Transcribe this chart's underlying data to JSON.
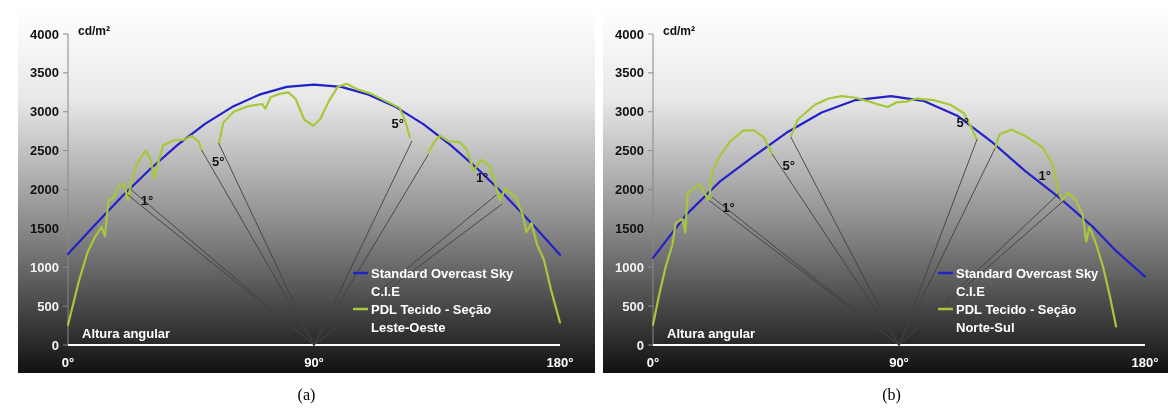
{
  "chart_data": [
    {
      "type": "line",
      "xlabel": "Altura angular",
      "ylabel": "cd/m²",
      "xlim": [
        0,
        180
      ],
      "xticks": [
        {
          "value": 0,
          "label": "0°"
        },
        {
          "value": 90,
          "label": "90°"
        },
        {
          "value": 180,
          "label": "180°"
        }
      ],
      "ylim": [
        0,
        4000
      ],
      "yticks": [
        0,
        500,
        1000,
        1500,
        2000,
        2500,
        3000,
        3500,
        4000
      ],
      "legend": "bottom right",
      "annotations": [
        {
          "text": "1°",
          "x": 23,
          "y": 2000
        },
        {
          "text": "5°",
          "x": 49,
          "y": 2500
        },
        {
          "text": "5°",
          "x": 125.8,
          "y": 2620
        },
        {
          "text": "1°",
          "x": 156.7,
          "y": 1930
        },
        "(a)"
      ],
      "series": [
        {
          "name": "Standard Overcast Sky C.I.E",
          "color": "#2222c8",
          "x": [
            0,
            10,
            20,
            30,
            40,
            50,
            60,
            70,
            80,
            90,
            100,
            110,
            120,
            130,
            140,
            150,
            160,
            170,
            180
          ],
          "values": [
            1170,
            1550,
            1920,
            2260,
            2570,
            2840,
            3060,
            3220,
            3320,
            3350,
            3320,
            3220,
            3060,
            2840,
            2570,
            2260,
            1920,
            1550,
            1160
          ]
        },
        {
          "name": "PDL Tecido - Seção Leste-Oeste",
          "color": "#a6c83a",
          "x": [
            0,
            3.9,
            7.1,
            9.7,
            12.3,
            13.5,
            14.8,
            16.8,
            18.7,
            20.6,
            21.9,
            23.2,
            25.2,
            28.4,
            30.3,
            31.6,
            32.9,
            34.8,
            38.7,
            42.6,
            45.2,
            47.7,
            49,
            52,
            55.2,
            56.8,
            60.6,
            65.8,
            71,
            72.2,
            74.2,
            77.4,
            80.6,
            83.2,
            86.4,
            89.7,
            92.2,
            95.5,
            98.7,
            101.9,
            105.8,
            111,
            116.1,
            121.3,
            123.2,
            125.1,
            128.5,
            131.8,
            134.2,
            136.1,
            139.3,
            143.2,
            145.8,
            148.4,
            151,
            154.2,
            156.1,
            158,
            160,
            163.8,
            166.4,
            167.7,
            169.6,
            171.6,
            174.1,
            176.7,
            180
          ],
          "values": [
            260,
            810,
            1190,
            1380,
            1520,
            1400,
            1860,
            1900,
            2050,
            2070,
            1860,
            2100,
            2330,
            2500,
            2380,
            2140,
            2330,
            2570,
            2630,
            2640,
            2690,
            2620,
            2500,
            null,
            2590,
            2860,
            3000,
            3070,
            3100,
            3040,
            3190,
            3230,
            3250,
            3170,
            2900,
            2820,
            2900,
            3140,
            3320,
            3360,
            3290,
            3230,
            3140,
            3050,
            2900,
            2670,
            null,
            2480,
            2620,
            2690,
            2620,
            2610,
            2520,
            2240,
            2380,
            2310,
            2100,
            1860,
            2010,
            1900,
            1670,
            1450,
            1570,
            1290,
            1100,
            710,
            290
          ]
        },
        {
          "color": "#404040",
          "x": [
            90,
            21.9
          ],
          "values": [
            0,
            1930
          ]
        },
        {
          "color": "#404040",
          "x": [
            90,
            23
          ],
          "values": [
            0,
            2000
          ]
        },
        {
          "color": "#404040",
          "x": [
            90,
            49
          ],
          "values": [
            0,
            2500
          ]
        },
        {
          "color": "#404040",
          "x": [
            90,
            55.2
          ],
          "values": [
            0,
            2590
          ]
        },
        {
          "color": "#404040",
          "x": [
            90,
            125.8
          ],
          "values": [
            0,
            2620
          ]
        },
        {
          "color": "#404040",
          "x": [
            90,
            131.8
          ],
          "values": [
            0,
            2450
          ]
        },
        {
          "color": "#404040",
          "x": [
            90,
            156.7
          ],
          "values": [
            0,
            1930
          ]
        },
        {
          "color": "#404040",
          "x": [
            90,
            158.7
          ],
          "values": [
            0,
            1810
          ]
        }
      ]
    },
    {
      "type": "line",
      "xlabel": "Altura angular",
      "ylabel": "cd/m²",
      "xlim": [
        0,
        180
      ],
      "xticks": [
        {
          "value": 0,
          "label": "0°"
        },
        {
          "value": 90,
          "label": "90°"
        },
        {
          "value": 180,
          "label": "180°"
        }
      ],
      "ylim": [
        0,
        4000
      ],
      "yticks": [
        0,
        500,
        1000,
        1500,
        2000,
        2500,
        3000,
        3500,
        4000
      ],
      "legend": "bottom right",
      "annotations": [
        {
          "text": "1°",
          "x": 21.7,
          "y": 1900
        },
        {
          "text": "5°",
          "x": 43.7,
          "y": 2450
        },
        {
          "text": "5°",
          "x": 118.5,
          "y": 2640
        },
        {
          "text": "1°",
          "x": 148.5,
          "y": 1950
        },
        "(b)"
      ],
      "series": [
        {
          "name": "Standard Overcast Sky C.I.E",
          "color": "#2222c8",
          "x": [
            0,
            12,
            24.4,
            36.9,
            49.3,
            61.7,
            74.1,
            87.1,
            98.9,
            111.3,
            123.7,
            136.1,
            148.5,
            160.9,
            169.4,
            180
          ],
          "values": [
            1120,
            1670,
            2100,
            2430,
            2740,
            2990,
            3150,
            3200,
            3140,
            2950,
            2620,
            2240,
            1900,
            1520,
            1210,
            880
          ]
        },
        {
          "name": "PDL Tecido - Seção Norte-Sul",
          "color": "#a6c83a",
          "x": [
            0,
            2.1,
            4.6,
            7.1,
            8.3,
            10.8,
            11.8,
            12.7,
            14.5,
            17,
            18.9,
            20.5,
            21.7,
            24.4,
            28.2,
            33.1,
            36.9,
            40.6,
            43.7,
            47,
            50.5,
            53,
            59.2,
            64.2,
            69.1,
            74.1,
            79.1,
            82.8,
            85.9,
            89,
            92.7,
            96.4,
            102.6,
            108.8,
            113.8,
            116.3,
            118.5,
            122,
            125,
            126.8,
            131.2,
            136.1,
            142.3,
            146.1,
            148.5,
            149.8,
            151.7,
            154.8,
            157.2,
            158.5,
            159.7,
            162.2,
            164.7,
            167.2,
            169.4
          ],
          "values": [
            260,
            620,
            1000,
            1290,
            1570,
            1620,
            1450,
            1950,
            2000,
            2070,
            1950,
            1860,
            2240,
            2430,
            2620,
            2760,
            2760,
            2670,
            2450,
            null,
            2690,
            2900,
            3090,
            3170,
            3200,
            3180,
            3130,
            3090,
            3060,
            3120,
            3130,
            3170,
            3150,
            3090,
            2980,
            2810,
            2640,
            null,
            2520,
            2710,
            2770,
            2690,
            2550,
            2330,
            1950,
            1860,
            1960,
            1860,
            1670,
            1330,
            1520,
            1290,
            1000,
            620,
            240
          ]
        },
        {
          "color": "#404040",
          "x": [
            90,
            20.5
          ],
          "values": [
            0,
            1860
          ]
        },
        {
          "color": "#404040",
          "x": [
            90,
            21.7
          ],
          "values": [
            0,
            1900
          ]
        },
        {
          "color": "#404040",
          "x": [
            90,
            43.7
          ],
          "values": [
            0,
            2450
          ]
        },
        {
          "color": "#404040",
          "x": [
            90,
            50.5
          ],
          "values": [
            0,
            2670
          ]
        },
        {
          "color": "#404040",
          "x": [
            90,
            118.5
          ],
          "values": [
            0,
            2640
          ]
        },
        {
          "color": "#404040",
          "x": [
            90,
            125
          ],
          "values": [
            0,
            2520
          ]
        },
        {
          "color": "#404040",
          "x": [
            90,
            148.5
          ],
          "values": [
            0,
            1950
          ]
        },
        {
          "color": "#404040",
          "x": [
            90,
            150.4
          ],
          "values": [
            0,
            1860
          ]
        }
      ]
    }
  ]
}
